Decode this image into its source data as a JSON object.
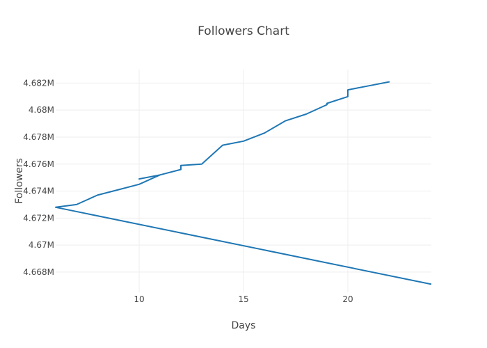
{
  "chart_data": {
    "type": "line",
    "title": "Followers Chart",
    "xlabel": "Days",
    "ylabel": "Followers",
    "xlim": [
      6,
      24
    ],
    "ylim": [
      4.6665,
      4.683
    ],
    "x_ticks": [
      10,
      15,
      20
    ],
    "x_tick_labels": [
      "10",
      "15",
      "20"
    ],
    "y_ticks": [
      4.668,
      4.67,
      4.672,
      4.674,
      4.676,
      4.678,
      4.68,
      4.682
    ],
    "y_tick_labels": [
      "4.668M",
      "4.67M",
      "4.672M",
      "4.674M",
      "4.676M",
      "4.678M",
      "4.68M",
      "4.682M"
    ],
    "grid": true,
    "legend": "none",
    "line_color": "#1f77b4",
    "series": [
      {
        "x": [
          24,
          6,
          7,
          8,
          9,
          10,
          11,
          10,
          11,
          12,
          12,
          13,
          14,
          15,
          16,
          17,
          18,
          19,
          19,
          20,
          20,
          21,
          22
        ],
        "y": [
          4.6671,
          4.6728,
          4.673,
          4.6737,
          4.6741,
          4.6745,
          4.6752,
          4.6749,
          4.6752,
          4.6756,
          4.6759,
          4.676,
          4.6774,
          4.6777,
          4.6783,
          4.6792,
          4.6797,
          4.6804,
          4.6805,
          4.681,
          4.6815,
          4.6818,
          4.6821
        ]
      }
    ]
  }
}
